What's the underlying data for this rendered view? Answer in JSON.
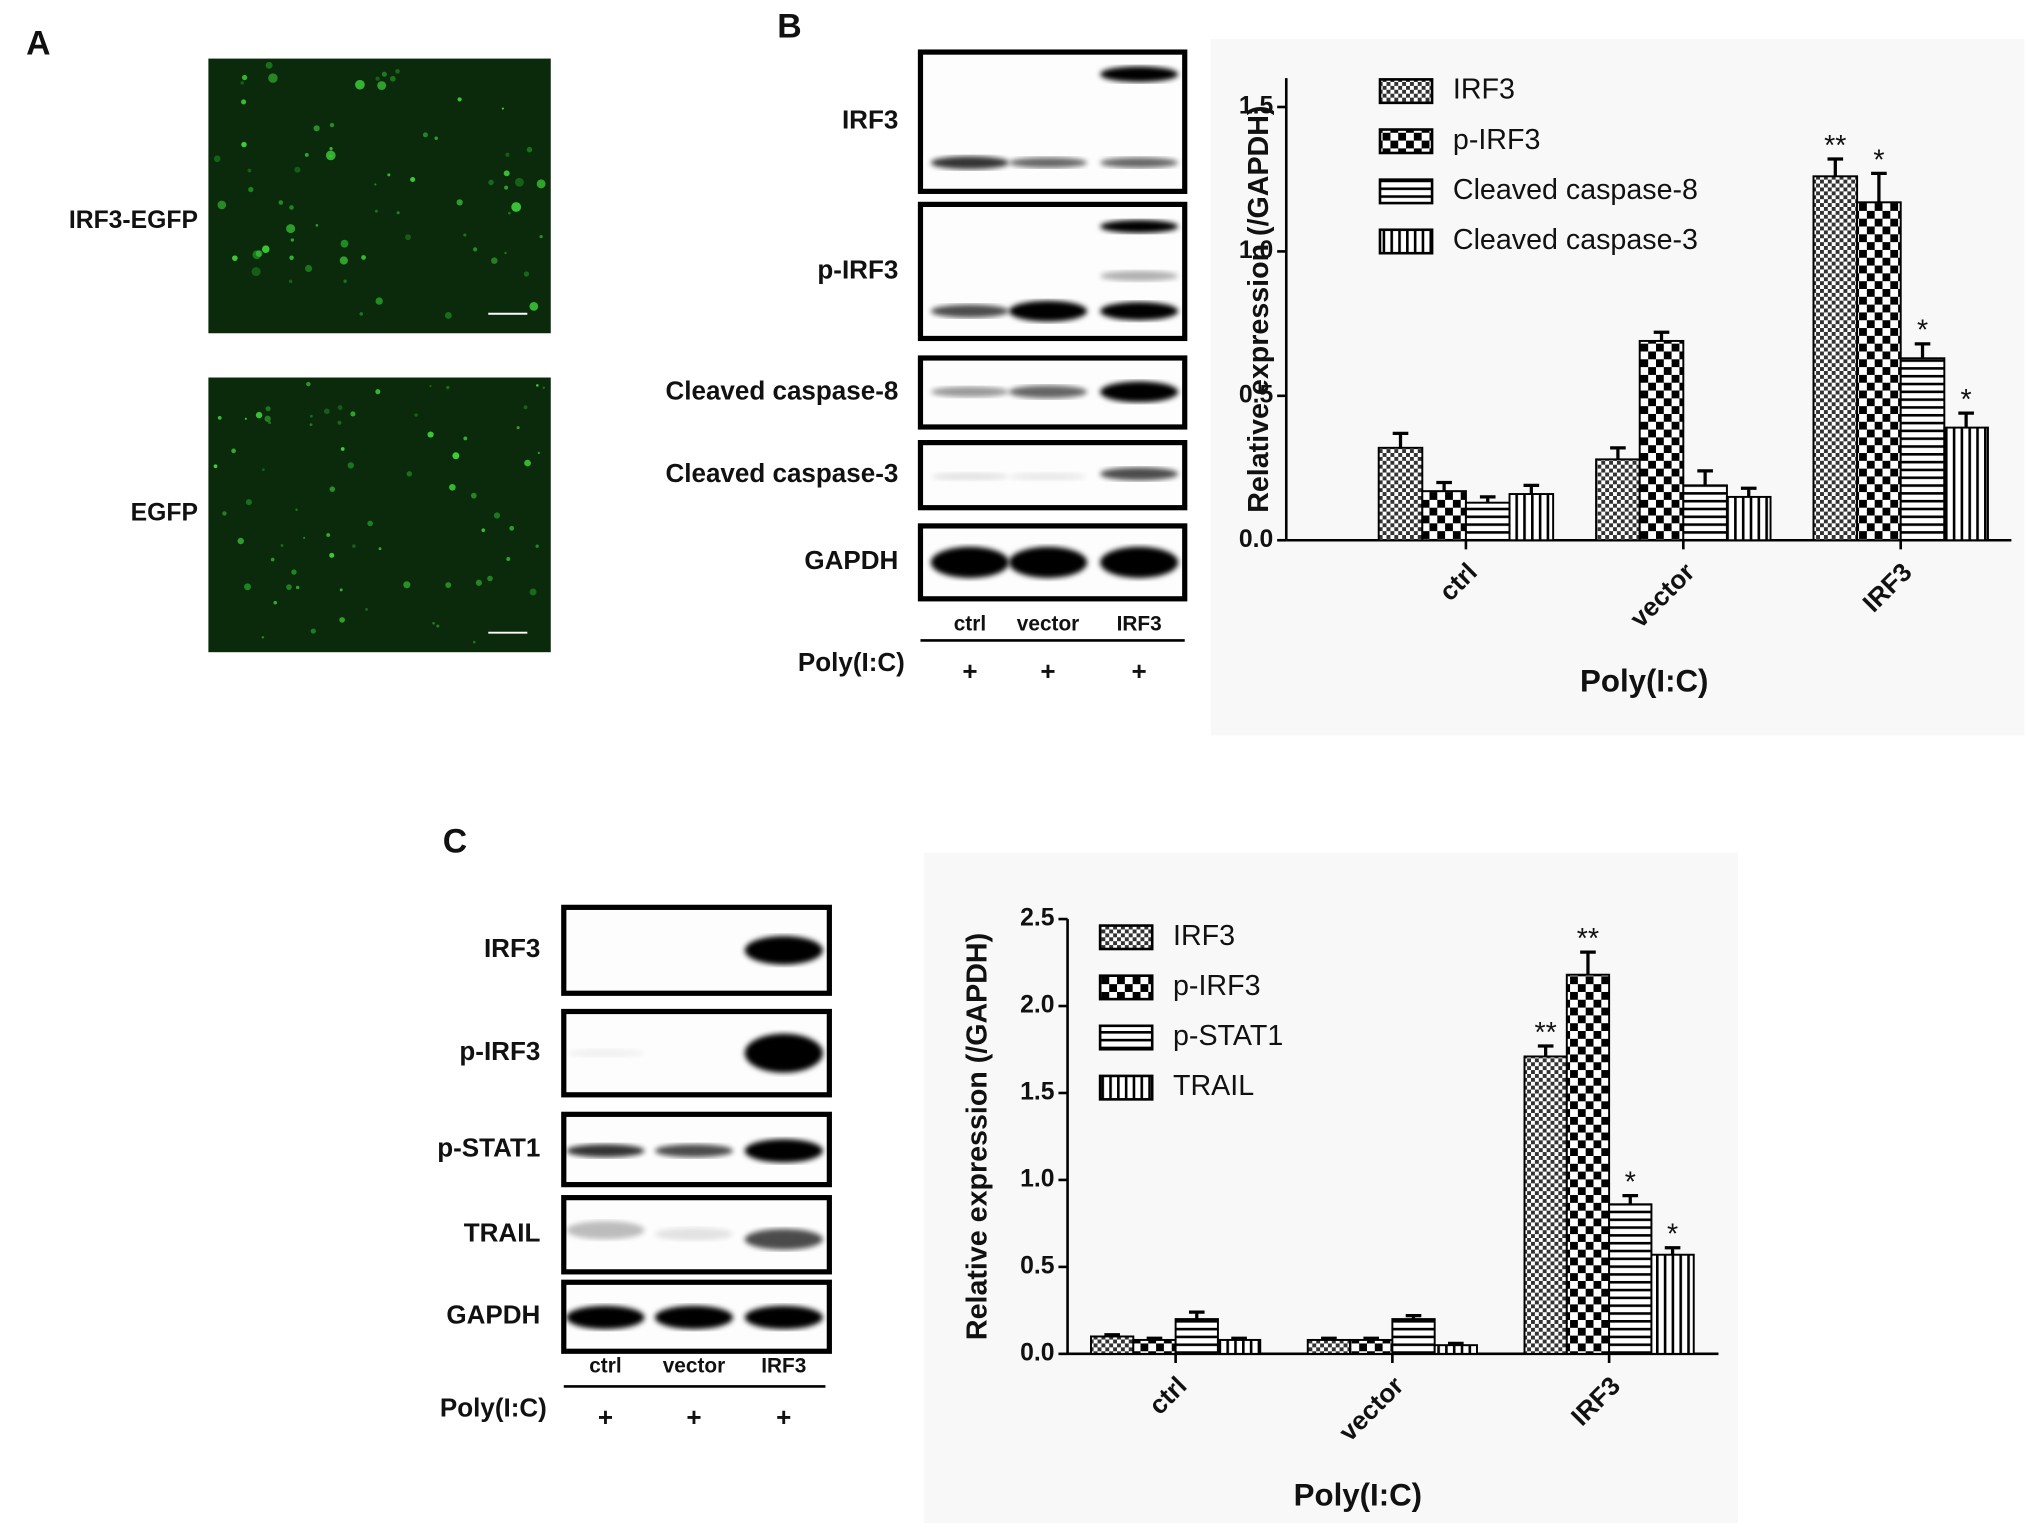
{
  "chart_data": [
    {
      "type": "bar",
      "y_label": "Relative expression (/GAPDH)",
      "x_label": "Poly(I:C)",
      "categories": [
        "ctrl",
        "vector",
        "IRF3"
      ],
      "series": [
        {
          "name": "IRF3",
          "color": "#000000",
          "values": [
            0.32,
            0.28,
            1.26
          ],
          "errors": [
            0.05,
            0.04,
            0.06
          ],
          "labels": [
            null,
            null,
            "**"
          ]
        },
        {
          "name": "p-IRF3",
          "color": "#000000",
          "values": [
            0.17,
            0.69,
            1.17
          ],
          "errors": [
            0.03,
            0.03,
            0.1
          ],
          "labels": [
            null,
            null,
            "*"
          ]
        },
        {
          "name": "Cleaved caspase-8",
          "color": "#000000",
          "values": [
            0.13,
            0.19,
            0.63
          ],
          "errors": [
            0.02,
            0.05,
            0.05
          ],
          "labels": [
            null,
            null,
            "*"
          ]
        },
        {
          "name": "Cleaved caspase-3",
          "color": "#000000",
          "values": [
            0.16,
            0.15,
            0.39
          ],
          "errors": [
            0.03,
            0.03,
            0.05
          ],
          "labels": [
            null,
            null,
            "*"
          ]
        }
      ],
      "ylim": [
        0,
        1.6
      ],
      "yticks": [
        {
          "value": 0,
          "label": "0.0"
        },
        0.5,
        {
          "value": 1,
          "label": "1.0"
        },
        1.5
      ],
      "legend": "upper left"
    },
    {
      "type": "bar",
      "y_label": "Relative expression (/GAPDH)",
      "x_label": "Poly(I:C)",
      "categories": [
        "ctrl",
        "vector",
        "IRF3"
      ],
      "series": [
        {
          "name": "IRF3",
          "color": "#000000",
          "values": [
            0.1,
            0.08,
            1.71
          ],
          "errors": [
            0.01,
            0.01,
            0.06
          ],
          "labels": [
            null,
            null,
            "**"
          ]
        },
        {
          "name": "p-IRF3",
          "color": "#000000",
          "values": [
            0.08,
            0.08,
            2.18
          ],
          "errors": [
            0.01,
            0.01,
            0.13
          ],
          "labels": [
            null,
            null,
            "**"
          ]
        },
        {
          "name": "p-STAT1",
          "color": "#000000",
          "values": [
            0.2,
            0.2,
            0.86
          ],
          "errors": [
            0.04,
            0.02,
            0.05
          ],
          "labels": [
            null,
            null,
            "*"
          ]
        },
        {
          "name": "TRAIL",
          "color": "#000000",
          "values": [
            0.08,
            0.05,
            0.57
          ],
          "errors": [
            0.01,
            0.01,
            0.04
          ],
          "labels": [
            null,
            null,
            "*"
          ]
        }
      ],
      "ylim": [
        0,
        2.5
      ],
      "yticks": [
        {
          "value": 0,
          "label": "0.0"
        },
        0.5,
        {
          "value": 1,
          "label": "1.0"
        },
        1.5,
        {
          "value": 2,
          "label": "2.0"
        },
        2.5
      ],
      "legend": "upper left"
    }
  ],
  "figure": {
    "panel_labels": [
      "A",
      "B",
      "C"
    ],
    "panel_a": {
      "images": [
        "IRF3-EGFP",
        "EGFP"
      ]
    },
    "blot_b": {
      "rows": [
        "IRF3",
        "p-IRF3",
        "Cleaved caspase-8",
        "Cleaved caspase-3",
        "GAPDH"
      ],
      "lanes": [
        "ctrl",
        "vector",
        "IRF3"
      ],
      "treatment": "Poly(I:C)",
      "signs": [
        "+",
        "+",
        "+"
      ]
    },
    "blot_c": {
      "rows": [
        "IRF3",
        "p-IRF3",
        "p-STAT1",
        "TRAIL",
        "GAPDH"
      ],
      "lanes": [
        "ctrl",
        "vector",
        "IRF3"
      ],
      "treatment": "Poly(I:C)",
      "signs": [
        "+",
        "+",
        "+"
      ]
    }
  }
}
